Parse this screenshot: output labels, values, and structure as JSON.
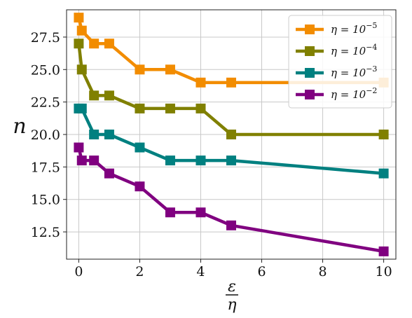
{
  "chart_data": {
    "type": "line",
    "xlabel_num": "ε",
    "xlabel_den": "η",
    "ylabel": "n",
    "xlim": [
      -0.4,
      10.4
    ],
    "ylim": [
      10.4,
      29.6
    ],
    "x_ticks": [
      0,
      2,
      4,
      6,
      8,
      10
    ],
    "y_ticks": [
      12.5,
      15.0,
      17.5,
      20.0,
      22.5,
      25.0,
      27.5
    ],
    "y_tick_labels": [
      "12.5",
      "15.0",
      "17.5",
      "20.0",
      "22.5",
      "25.0",
      "27.5"
    ],
    "grid": true,
    "legend_position": "top-right",
    "x": [
      0,
      0.1,
      0.5,
      1,
      2,
      3,
      4,
      5,
      10
    ],
    "series": [
      {
        "name": "η = 10",
        "exp": "−5",
        "color": "#f28c00",
        "values": [
          29,
          28,
          27,
          27,
          25,
          25,
          24,
          24,
          24
        ]
      },
      {
        "name": "η = 10",
        "exp": "−4",
        "color": "#808000",
        "values": [
          27,
          25,
          23,
          23,
          22,
          22,
          22,
          20,
          20
        ]
      },
      {
        "name": "η = 10",
        "exp": "−3",
        "color": "#008080",
        "values": [
          22,
          22,
          20,
          20,
          19,
          18,
          18,
          18,
          17
        ]
      },
      {
        "name": "η = 10",
        "exp": "−2",
        "color": "#800080",
        "values": [
          19,
          18,
          18,
          17,
          16,
          14,
          14,
          13,
          11
        ]
      }
    ]
  }
}
